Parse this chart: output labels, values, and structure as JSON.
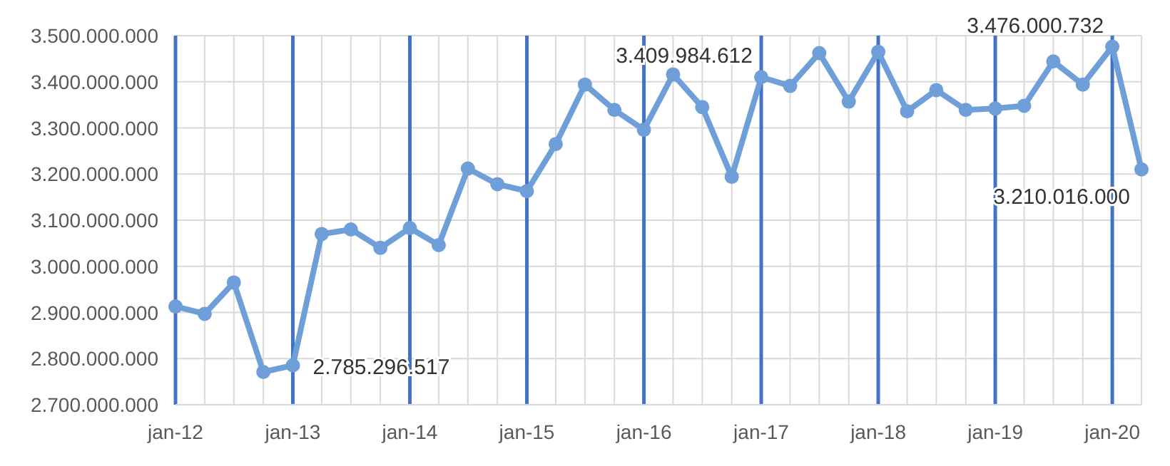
{
  "chart_data": {
    "type": "line",
    "x": [
      "2012-01",
      "2012-04",
      "2012-07",
      "2012-10",
      "2013-01",
      "2013-04",
      "2013-07",
      "2013-10",
      "2014-01",
      "2014-04",
      "2014-07",
      "2014-10",
      "2015-01",
      "2015-04",
      "2015-07",
      "2015-10",
      "2016-01",
      "2016-04",
      "2016-07",
      "2016-10",
      "2017-01",
      "2017-04",
      "2017-07",
      "2017-10",
      "2018-01",
      "2018-04",
      "2018-07",
      "2018-10",
      "2019-01",
      "2019-04",
      "2019-07",
      "2019-10",
      "2020-01",
      "2020-04"
    ],
    "series": [
      {
        "color": "#6e9fd8",
        "values": [
          2913000000,
          2897000000,
          2965000000,
          2771000000,
          2785296517,
          3070000000,
          3080000000,
          3040000000,
          3083000000,
          3046000000,
          3212000000,
          3178000000,
          3163000000,
          3265000000,
          3394000000,
          3339000000,
          3296000000,
          3416000000,
          3345000000,
          3194000000,
          3409984612,
          3391000000,
          3462000000,
          3357000000,
          3465000000,
          3336000000,
          3382000000,
          3339000000,
          3342000000,
          3348000000,
          3444000000,
          3394000000,
          3476000732,
          3210016000
        ],
        "value_labels": [
          null,
          null,
          null,
          null,
          "2.785.296.517",
          null,
          null,
          null,
          null,
          null,
          null,
          null,
          null,
          null,
          null,
          null,
          null,
          null,
          null,
          null,
          "3.409.984.612",
          null,
          null,
          null,
          null,
          null,
          null,
          null,
          null,
          null,
          null,
          null,
          "3.476.000.732",
          "3.210.016.000"
        ]
      }
    ],
    "xlim": [
      "2012-01",
      "2020-04"
    ],
    "xticks": [
      {
        "value": "2012-01",
        "label": "jan-12"
      },
      {
        "value": "2012-04",
        "label": null
      },
      {
        "value": "2012-07",
        "label": null
      },
      {
        "value": "2012-10",
        "label": null
      },
      {
        "value": "2013-01",
        "label": "jan-13"
      },
      {
        "value": "2013-04",
        "label": null
      },
      {
        "value": "2013-07",
        "label": null
      },
      {
        "value": "2013-10",
        "label": null
      },
      {
        "value": "2014-01",
        "label": "jan-14"
      },
      {
        "value": "2014-04",
        "label": null
      },
      {
        "value": "2014-07",
        "label": null
      },
      {
        "value": "2014-10",
        "label": null
      },
      {
        "value": "2015-01",
        "label": "jan-15"
      },
      {
        "value": "2015-04",
        "label": null
      },
      {
        "value": "2015-07",
        "label": null
      },
      {
        "value": "2015-10",
        "label": null
      },
      {
        "value": "2016-01",
        "label": "jan-16"
      },
      {
        "value": "2016-04",
        "label": null
      },
      {
        "value": "2016-07",
        "label": null
      },
      {
        "value": "2016-10",
        "label": null
      },
      {
        "value": "2017-01",
        "label": "jan-17"
      },
      {
        "value": "2017-04",
        "label": null
      },
      {
        "value": "2017-07",
        "label": null
      },
      {
        "value": "2017-10",
        "label": null
      },
      {
        "value": "2018-01",
        "label": "jan-18"
      },
      {
        "value": "2018-04",
        "label": null
      },
      {
        "value": "2018-07",
        "label": null
      },
      {
        "value": "2018-10",
        "label": null
      },
      {
        "value": "2019-01",
        "label": "jan-19"
      },
      {
        "value": "2019-04",
        "label": null
      },
      {
        "value": "2019-07",
        "label": null
      },
      {
        "value": "2019-10",
        "label": null
      },
      {
        "value": "2020-01",
        "label": "jan-20"
      },
      {
        "value": "2020-04",
        "label": null
      }
    ],
    "ylim": [
      2700000000,
      3500000000
    ],
    "yticks": [
      {
        "value": 2700000000,
        "label": "2.700.000.000"
      },
      {
        "value": 2800000000,
        "label": "2.800.000.000"
      },
      {
        "value": 2900000000,
        "label": "2.900.000.000"
      },
      {
        "value": 3000000000,
        "label": "3.000.000.000"
      },
      {
        "value": 3100000000,
        "label": "3.100.000.000"
      },
      {
        "value": 3200000000,
        "label": "3.200.000.000"
      },
      {
        "value": 3300000000,
        "label": "3.300.000.000"
      },
      {
        "value": 3400000000,
        "label": "3.400.000.000"
      },
      {
        "value": 3500000000,
        "label": "3.500.000.000"
      }
    ],
    "grid": true,
    "marker": "circle"
  }
}
